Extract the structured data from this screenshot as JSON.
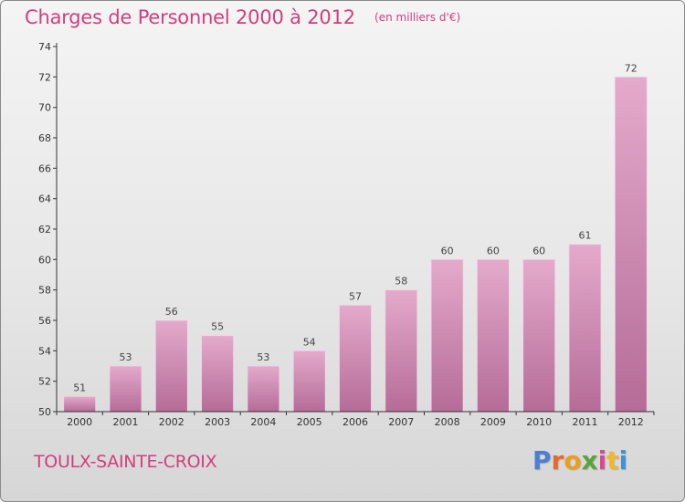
{
  "header": {
    "title": "Charges de Personnel 2000 à 2012",
    "unit": "(en milliers d'€)"
  },
  "footer": {
    "commune": "TOULX-SAINTE-CROIX",
    "logo": "Proxiti",
    "logo_colors": [
      "#4c7fd0",
      "#e66b2b",
      "#e8a020",
      "#5aa43c",
      "#d94b8f",
      "#f0b82e",
      "#3f92d6"
    ]
  },
  "colors": {
    "title": "#d13f7a",
    "bar_top": "#e4aacb",
    "bar_bottom": "#b56c98",
    "axis": "#333333"
  },
  "chart_data": {
    "type": "bar",
    "title": "Charges de Personnel 2000 à 2012",
    "subtitle": "(en milliers d'€)",
    "xlabel": "",
    "ylabel": "",
    "categories": [
      "2000",
      "2001",
      "2002",
      "2003",
      "2004",
      "2005",
      "2006",
      "2007",
      "2008",
      "2009",
      "2010",
      "2011",
      "2012"
    ],
    "values": [
      51,
      53,
      56,
      55,
      53,
      54,
      57,
      58,
      60,
      60,
      60,
      61,
      72
    ],
    "ylim": [
      50,
      74
    ],
    "yticks": [
      50,
      52,
      54,
      56,
      58,
      60,
      62,
      64,
      66,
      68,
      70,
      72,
      74
    ],
    "grid": false,
    "legend": "none"
  }
}
